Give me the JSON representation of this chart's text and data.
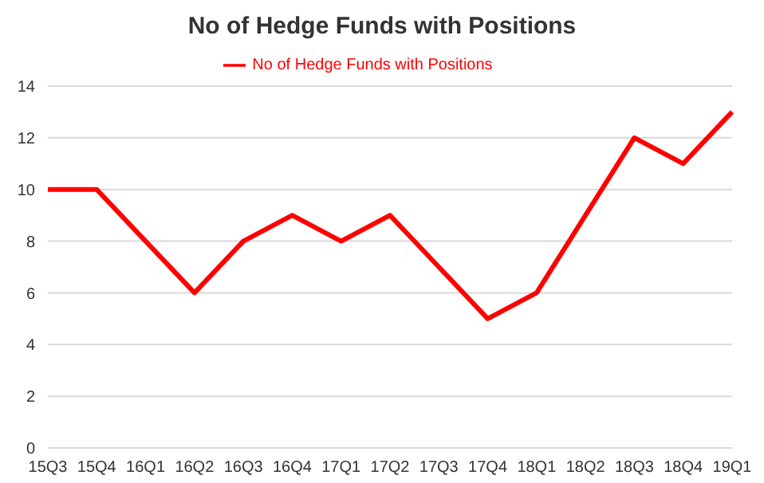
{
  "chart_data": {
    "type": "line",
    "title": "No of Hedge Funds with Positions",
    "categories": [
      "15Q3",
      "15Q4",
      "16Q1",
      "16Q2",
      "16Q3",
      "16Q4",
      "17Q1",
      "17Q2",
      "17Q3",
      "17Q4",
      "18Q1",
      "18Q2",
      "18Q3",
      "18Q4",
      "19Q1"
    ],
    "series": [
      {
        "name": "No of Hedge Funds with Positions",
        "color": "#ff0000",
        "values": [
          10,
          10,
          8,
          6,
          8,
          9,
          8,
          9,
          7,
          5,
          6,
          9,
          12,
          11,
          13
        ]
      }
    ],
    "ylim": [
      0,
      14
    ],
    "yticks": [
      0,
      2,
      4,
      6,
      8,
      10,
      12,
      14
    ],
    "grid": "y",
    "legend": "top",
    "marker": "none",
    "line_style": "solid"
  }
}
